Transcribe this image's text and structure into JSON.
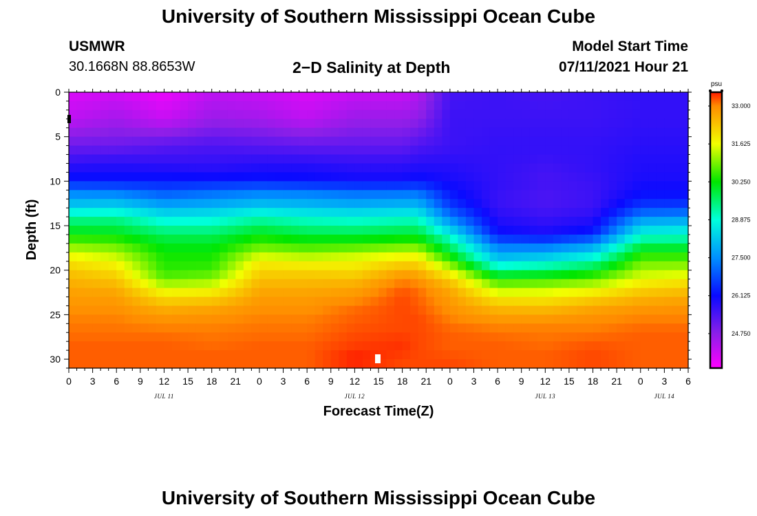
{
  "header": {
    "top_title": "University of Southern Mississippi Ocean Cube",
    "bottom_title": "University of Southern Mississippi Ocean Cube",
    "station": "USMWR",
    "coords": "30.1668N  88.8653W",
    "subtitle": "2−D Salinity at Depth",
    "model_label": "Model Start Time",
    "model_time": "07/11/2021 Hour 21"
  },
  "chart_data": {
    "type": "heatmap",
    "title": "2-D Salinity at Depth",
    "xlabel": "Forecast Time(Z)",
    "ylabel": "Depth (ft)",
    "unit": "psu",
    "x_range_hours": [
      0,
      78
    ],
    "ylim": [
      0,
      31
    ],
    "x_tick_labels": [
      "0",
      "3",
      "6",
      "9",
      "12",
      "15",
      "18",
      "21",
      "0",
      "3",
      "6",
      "9",
      "12",
      "15",
      "18",
      "21",
      "0",
      "3",
      "6",
      "9",
      "12",
      "15",
      "18",
      "21",
      "0",
      "3",
      "6"
    ],
    "y_ticks": [
      0,
      5,
      10,
      15,
      20,
      25,
      30
    ],
    "day_labels": [
      {
        "label": "JUL 11",
        "hour": 12
      },
      {
        "label": "JUL 12",
        "hour": 36
      },
      {
        "label": "JUL 13",
        "hour": 60
      },
      {
        "label": "JUL 14",
        "hour": 75
      }
    ],
    "colorbar": {
      "min": 23.5,
      "max": 33.5,
      "tick_values": [
        33.0,
        31.625,
        30.25,
        28.875,
        27.5,
        26.125,
        24.75
      ],
      "tick_labels": [
        "33.000",
        "31.625",
        "30.250",
        "28.875",
        "27.500",
        "26.125",
        "24.750"
      ],
      "stops": [
        {
          "value": 23.5,
          "color": "#ff00ff"
        },
        {
          "value": 24.75,
          "color": "#8c1fe8"
        },
        {
          "value": 26.125,
          "color": "#0a0aff"
        },
        {
          "value": 27.5,
          "color": "#0090ff"
        },
        {
          "value": 28.875,
          "color": "#00ffdc"
        },
        {
          "value": 30.25,
          "color": "#00e600"
        },
        {
          "value": 31.625,
          "color": "#f2ff00"
        },
        {
          "value": 33.0,
          "color": "#ff8c00"
        },
        {
          "value": 33.5,
          "color": "#ff1a00"
        }
      ]
    },
    "profile_hours": [
      0,
      6,
      12,
      18,
      24,
      30,
      36,
      42,
      44,
      48,
      54,
      60,
      66,
      72,
      78
    ],
    "profile_depths": [
      0,
      3,
      6,
      8,
      9,
      10,
      11,
      12,
      13,
      14,
      15,
      16,
      17,
      18,
      19,
      20,
      21,
      22,
      23,
      24,
      25,
      26,
      27,
      28,
      29,
      30,
      31
    ],
    "profiles": [
      [
        23.9,
        24.2,
        25.1,
        25.7,
        26.0,
        26.3,
        27.2,
        27.8,
        28.3,
        29.3,
        29.7,
        30.3,
        30.8,
        31.5,
        31.9,
        32.3,
        32.5,
        32.7,
        32.8,
        32.9,
        33.0,
        33.1,
        33.1,
        33.2,
        33.2,
        33.2,
        33.2
      ],
      [
        24.0,
        24.5,
        25.1,
        25.8,
        26.0,
        26.3,
        27.1,
        27.8,
        28.4,
        29.3,
        29.7,
        30.2,
        30.7,
        31.2,
        31.6,
        32.0,
        32.3,
        32.6,
        32.8,
        32.9,
        33.0,
        33.1,
        33.1,
        33.2,
        33.2,
        33.2,
        33.2
      ],
      [
        23.7,
        24.1,
        25.3,
        25.7,
        26.0,
        26.3,
        26.8,
        27.3,
        27.9,
        28.6,
        29.1,
        29.7,
        30.0,
        30.3,
        30.4,
        30.5,
        30.8,
        31.5,
        32.0,
        32.5,
        32.8,
        33.0,
        33.1,
        33.2,
        33.2,
        33.2,
        33.2
      ],
      [
        24.2,
        24.6,
        25.4,
        25.7,
        25.9,
        26.3,
        27.0,
        27.5,
        28.0,
        28.7,
        29.1,
        29.7,
        30.0,
        30.3,
        30.4,
        30.6,
        31.0,
        31.6,
        32.1,
        32.6,
        32.9,
        33.0,
        33.1,
        33.1,
        33.2,
        33.2,
        33.2
      ],
      [
        24.1,
        24.5,
        25.3,
        25.8,
        26.0,
        26.3,
        27.2,
        27.7,
        28.3,
        29.1,
        29.6,
        30.2,
        30.6,
        31.2,
        31.8,
        32.1,
        32.4,
        32.6,
        32.8,
        32.9,
        33.0,
        33.1,
        33.1,
        33.2,
        33.2,
        33.2,
        33.2
      ],
      [
        23.9,
        24.2,
        25.2,
        25.8,
        26.0,
        26.2,
        27.1,
        27.7,
        28.1,
        28.9,
        29.3,
        29.9,
        30.4,
        31.0,
        31.6,
        32.1,
        32.4,
        32.6,
        32.8,
        32.9,
        33.0,
        33.1,
        33.1,
        33.2,
        33.2,
        33.2,
        33.2
      ],
      [
        24.1,
        24.6,
        25.2,
        25.7,
        25.9,
        26.1,
        27.0,
        27.5,
        28.0,
        28.8,
        29.2,
        29.9,
        30.4,
        31.2,
        31.7,
        32.0,
        32.4,
        32.7,
        32.9,
        33.1,
        33.2,
        33.2,
        33.3,
        33.3,
        33.4,
        33.5,
        33.4
      ],
      [
        24.1,
        24.6,
        25.2,
        25.7,
        25.9,
        26.1,
        27.0,
        27.6,
        28.1,
        28.9,
        29.4,
        30.0,
        30.6,
        31.4,
        32.0,
        32.6,
        33.0,
        33.2,
        33.3,
        33.3,
        33.3,
        33.3,
        33.3,
        33.4,
        33.4,
        33.3,
        33.3
      ],
      [
        24.3,
        24.7,
        25.4,
        25.8,
        26.0,
        26.2,
        27.0,
        27.6,
        28.1,
        28.9,
        29.4,
        30.0,
        30.6,
        31.4,
        32.0,
        32.5,
        32.9,
        33.1,
        33.2,
        33.2,
        33.3,
        33.3,
        33.3,
        33.3,
        33.3,
        33.3,
        33.3
      ],
      [
        25.5,
        25.6,
        25.6,
        25.8,
        25.9,
        26.0,
        26.2,
        26.4,
        26.7,
        27.3,
        27.9,
        28.8,
        29.4,
        30.0,
        30.7,
        31.5,
        32.2,
        32.6,
        32.8,
        32.9,
        33.0,
        33.1,
        33.2,
        33.2,
        33.2,
        33.3,
        33.3
      ],
      [
        25.6,
        25.6,
        25.7,
        25.7,
        25.7,
        25.7,
        25.7,
        25.6,
        25.7,
        25.8,
        26.0,
        26.2,
        27.1,
        27.7,
        28.3,
        29.4,
        30.4,
        31.2,
        31.8,
        32.4,
        32.7,
        33.0,
        33.1,
        33.2,
        33.2,
        33.2,
        33.2
      ],
      [
        25.5,
        25.6,
        25.7,
        25.6,
        25.5,
        25.5,
        25.5,
        25.4,
        25.5,
        25.6,
        25.8,
        26.0,
        27.0,
        27.8,
        28.6,
        29.6,
        30.5,
        31.3,
        31.8,
        32.3,
        32.7,
        33.0,
        33.1,
        33.1,
        33.2,
        33.2,
        33.2
      ],
      [
        25.6,
        25.6,
        25.7,
        25.7,
        25.7,
        25.6,
        25.6,
        25.6,
        25.6,
        25.8,
        26.0,
        26.4,
        27.5,
        28.3,
        29.2,
        30.0,
        30.8,
        31.5,
        32.1,
        32.6,
        32.9,
        33.0,
        33.1,
        33.2,
        33.3,
        33.3,
        33.3
      ],
      [
        25.7,
        25.7,
        25.8,
        25.9,
        25.9,
        26.0,
        26.1,
        26.3,
        26.7,
        27.4,
        28.2,
        28.8,
        29.6,
        30.3,
        30.8,
        31.2,
        31.6,
        32.1,
        32.5,
        32.8,
        33.0,
        33.1,
        33.2,
        33.2,
        33.2,
        33.2,
        33.2
      ],
      [
        25.7,
        25.7,
        25.8,
        25.9,
        25.9,
        26.0,
        26.1,
        26.3,
        26.8,
        27.5,
        28.3,
        28.9,
        29.6,
        30.3,
        30.8,
        31.3,
        31.8,
        32.3,
        32.6,
        32.9,
        33.0,
        33.1,
        33.2,
        33.2,
        33.2,
        33.2,
        33.2
      ]
    ]
  }
}
